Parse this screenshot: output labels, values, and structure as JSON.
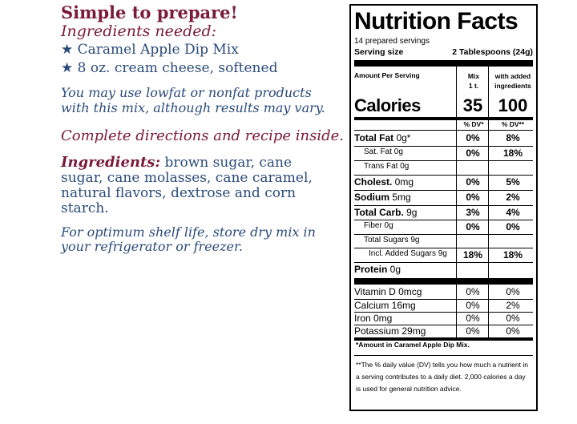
{
  "left": {
    "headline": "Simple to prepare!",
    "needed": "Ingredients needed:",
    "bullets": [
      "★ Caramel Apple Dip Mix",
      "★ 8 oz. cream cheese, softened"
    ],
    "lowfat": "You may use lowfat or nonfat products with this mix, although results may vary.",
    "complete": "Complete directions and recipe inside.",
    "ingredients_label": "Ingredients:",
    "ingredients_text": " brown sugar, cane sugar, cane molasses, cane caramel, natural flavors, dextrose and corn starch.",
    "shelf": "For optimum shelf life, store dry mix in your refrigerator or freezer."
  },
  "nutrition": {
    "title": "Nutrition Facts",
    "servings": "14 prepared servings",
    "serving_size_label": "Serving size",
    "serving_size_value": "2 Tablespoons (24g)",
    "amount_per_serving": "Amount Per Serving",
    "col_mix_line1": "Mix",
    "col_mix_line2": "1 t.",
    "col_with_line1": "with added",
    "col_with_line2": "ingredients",
    "calories_label": "Calories",
    "calories_mix": "35",
    "calories_with": "100",
    "dv_mix": "% DV*",
    "dv_with": "% DV**",
    "rows": [
      {
        "bold": "Total Fat",
        "rest": " 0g*",
        "mix": "0%",
        "with": "8%"
      },
      {
        "bold": "",
        "rest": "Sat. Fat 0g",
        "mix": "0%",
        "with": "18%"
      },
      {
        "bold": "",
        "rest": "Trans Fat 0g",
        "mix": "",
        "with": ""
      },
      {
        "bold": "Cholest.",
        "rest": " 0mg",
        "mix": "0%",
        "with": "5%"
      },
      {
        "bold": "Sodium",
        "rest": " 5mg",
        "mix": "0%",
        "with": "2%"
      },
      {
        "bold": "Total Carb.",
        "rest": " 9g",
        "mix": "3%",
        "with": "4%"
      },
      {
        "bold": "",
        "rest": "Fiber 0g",
        "mix": "0%",
        "with": "0%"
      },
      {
        "bold": "",
        "rest": "Total Sugars 9g",
        "mix": "",
        "with": ""
      },
      {
        "bold": "",
        "rest": "Incl. Added Sugars 9g",
        "mix": "18%",
        "with": "18%"
      },
      {
        "bold": "Protein",
        "rest": " 0g",
        "mix": "",
        "with": ""
      }
    ],
    "vitamins": [
      {
        "name": "Vitamin D 0mcg",
        "mix": "0%",
        "with": "0%"
      },
      {
        "name": "Calcium 16mg",
        "mix": "0%",
        "with": "2%"
      },
      {
        "name": "Iron 0mg",
        "mix": "0%",
        "with": "0%"
      },
      {
        "name": "Potassium 29mg",
        "mix": "0%",
        "with": "0%"
      }
    ],
    "footnote1": "*Amount in Caramel Apple Dip Mix.",
    "footnote2": "**The % daily value (DV) tells you how much a nutrient in a serving contributes to a daily diet. 2,000 calories a day is used for general nutrition advice."
  }
}
